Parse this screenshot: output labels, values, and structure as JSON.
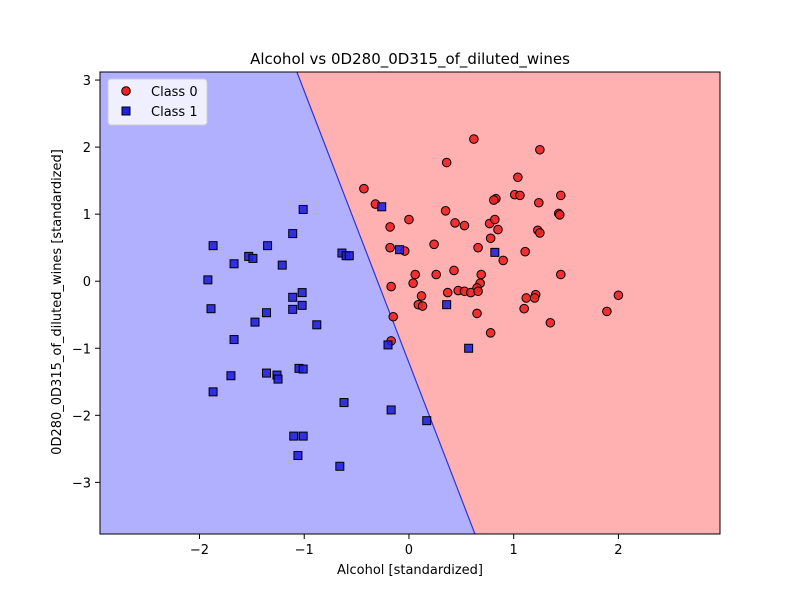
{
  "chart_data": {
    "type": "scatter",
    "title": "Alcohol vs 0D280_0D315_of_diluted_wines",
    "xlabel": "Alcohol [standardized]",
    "ylabel": "0D280_0D315_of_diluted_wines [standardized]",
    "xlim": [
      -2.95,
      2.97
    ],
    "ylim": [
      -3.77,
      3.12
    ],
    "xticks": [
      -2,
      -1,
      0,
      1,
      2
    ],
    "yticks": [
      3,
      2,
      1,
      0,
      -1,
      -2,
      -3
    ],
    "xtick_labels": [
      "−2",
      "−1",
      "0",
      "1",
      "2"
    ],
    "ytick_labels": [
      "3",
      "2",
      "1",
      "0",
      "−1",
      "−2",
      "−3"
    ],
    "grid": false,
    "legend_placement": "top-left",
    "decision_boundary": {
      "line": [
        [
          -1.07,
          3.12
        ],
        [
          0.63,
          -3.77
        ]
      ],
      "region_left_color": "#b0b0ff",
      "region_right_color": "#ffb0b0",
      "boundary_color": "#3333cc"
    },
    "series": [
      {
        "name": "Class 0",
        "marker": "circle",
        "color": "#ee2222",
        "points": [
          [
            0.62,
            2.12
          ],
          [
            0.36,
            1.77
          ],
          [
            1.25,
            1.96
          ],
          [
            1.04,
            1.55
          ],
          [
            -0.43,
            1.38
          ],
          [
            -0.32,
            1.15
          ],
          [
            0.35,
            1.05
          ],
          [
            0.0,
            0.92
          ],
          [
            1.01,
            1.29
          ],
          [
            1.06,
            1.28
          ],
          [
            0.83,
            1.23
          ],
          [
            0.81,
            1.21
          ],
          [
            1.45,
            1.28
          ],
          [
            1.24,
            1.17
          ],
          [
            1.43,
            1.01
          ],
          [
            1.44,
            0.99
          ],
          [
            0.44,
            0.87
          ],
          [
            0.53,
            0.83
          ],
          [
            0.77,
            0.86
          ],
          [
            0.82,
            0.92
          ],
          [
            0.85,
            0.77
          ],
          [
            1.23,
            0.76
          ],
          [
            1.25,
            0.72
          ],
          [
            -0.18,
            0.81
          ],
          [
            0.24,
            0.55
          ],
          [
            0.78,
            0.64
          ],
          [
            0.66,
            0.5
          ],
          [
            -0.18,
            0.5
          ],
          [
            -0.04,
            0.45
          ],
          [
            1.11,
            0.44
          ],
          [
            0.9,
            0.31
          ],
          [
            0.43,
            0.16
          ],
          [
            0.06,
            0.1
          ],
          [
            0.26,
            0.1
          ],
          [
            0.69,
            0.1
          ],
          [
            1.45,
            0.1
          ],
          [
            0.04,
            -0.03
          ],
          [
            -0.17,
            -0.08
          ],
          [
            0.68,
            -0.03
          ],
          [
            0.65,
            -0.1
          ],
          [
            0.37,
            -0.17
          ],
          [
            0.47,
            -0.14
          ],
          [
            0.53,
            -0.15
          ],
          [
            0.59,
            -0.17
          ],
          [
            0.66,
            -0.15
          ],
          [
            0.12,
            -0.22
          ],
          [
            1.21,
            -0.2
          ],
          [
            1.2,
            -0.25
          ],
          [
            1.12,
            -0.25
          ],
          [
            2.0,
            -0.21
          ],
          [
            0.09,
            -0.35
          ],
          [
            0.13,
            -0.37
          ],
          [
            1.1,
            -0.41
          ],
          [
            1.89,
            -0.45
          ],
          [
            0.65,
            -0.48
          ],
          [
            -0.15,
            -0.53
          ],
          [
            1.35,
            -0.62
          ],
          [
            0.78,
            -0.77
          ],
          [
            -0.17,
            -0.89
          ]
        ]
      },
      {
        "name": "Class 1",
        "marker": "square",
        "color": "#2222dd",
        "points": [
          [
            -0.26,
            1.11
          ],
          [
            -1.01,
            1.07
          ],
          [
            -1.11,
            0.71
          ],
          [
            -1.87,
            0.53
          ],
          [
            -1.35,
            0.53
          ],
          [
            -0.09,
            0.47
          ],
          [
            -0.64,
            0.42
          ],
          [
            -1.53,
            0.37
          ],
          [
            -0.6,
            0.38
          ],
          [
            -0.57,
            0.38
          ],
          [
            -1.49,
            0.34
          ],
          [
            -1.67,
            0.26
          ],
          [
            -1.21,
            0.24
          ],
          [
            0.82,
            0.43
          ],
          [
            -1.92,
            0.02
          ],
          [
            -1.11,
            -0.24
          ],
          [
            -1.02,
            -0.17
          ],
          [
            -1.02,
            -0.36
          ],
          [
            -1.89,
            -0.41
          ],
          [
            -1.11,
            -0.42
          ],
          [
            -1.36,
            -0.47
          ],
          [
            0.36,
            -0.35
          ],
          [
            -1.47,
            -0.61
          ],
          [
            -0.88,
            -0.65
          ],
          [
            -1.67,
            -0.87
          ],
          [
            -0.2,
            -0.95
          ],
          [
            0.57,
            -1.0
          ],
          [
            -1.05,
            -1.3
          ],
          [
            -1.01,
            -1.31
          ],
          [
            -1.36,
            -1.37
          ],
          [
            -1.26,
            -1.4
          ],
          [
            -1.7,
            -1.41
          ],
          [
            -1.25,
            -1.46
          ],
          [
            -1.87,
            -1.65
          ],
          [
            -0.62,
            -1.81
          ],
          [
            -0.17,
            -1.92
          ],
          [
            0.17,
            -2.08
          ],
          [
            -1.1,
            -2.31
          ],
          [
            -1.01,
            -2.31
          ],
          [
            -1.06,
            -2.6
          ],
          [
            -0.66,
            -2.76
          ]
        ]
      }
    ]
  }
}
